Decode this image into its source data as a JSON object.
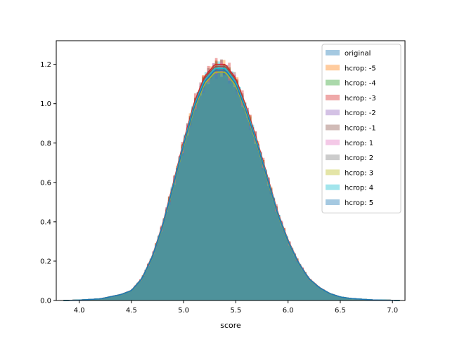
{
  "chart_data": {
    "type": "area",
    "title": "",
    "xlabel": "score",
    "ylabel": "",
    "xlim": [
      3.78,
      7.12
    ],
    "ylim": [
      0,
      1.32
    ],
    "xticks": [
      4.0,
      4.5,
      5.0,
      5.5,
      6.0,
      6.5,
      7.0
    ],
    "xtick_labels": [
      "4.0",
      "4.5",
      "5.0",
      "5.5",
      "6.0",
      "6.5",
      "7.0"
    ],
    "yticks": [
      0.0,
      0.2,
      0.4,
      0.6,
      0.8,
      1.0,
      1.2
    ],
    "ytick_labels": [
      "0.0",
      "0.2",
      "0.4",
      "0.6",
      "0.8",
      "1.0",
      "1.2"
    ],
    "grid": false,
    "legend_position": "top-right",
    "distribution_shape": {
      "x": [
        3.85,
        4.0,
        4.2,
        4.4,
        4.5,
        4.6,
        4.7,
        4.8,
        4.9,
        5.0,
        5.1,
        5.2,
        5.3,
        5.4,
        5.5,
        5.6,
        5.7,
        5.8,
        5.9,
        6.0,
        6.1,
        6.2,
        6.3,
        6.4,
        6.5,
        6.6,
        6.8,
        7.08
      ],
      "density": [
        0.0,
        0.002,
        0.008,
        0.03,
        0.05,
        0.11,
        0.22,
        0.38,
        0.58,
        0.79,
        0.98,
        1.11,
        1.17,
        1.17,
        1.1,
        0.96,
        0.8,
        0.62,
        0.44,
        0.3,
        0.19,
        0.11,
        0.065,
        0.035,
        0.018,
        0.01,
        0.003,
        0.0
      ]
    },
    "series": [
      {
        "name": "original",
        "color": "#1f77b4",
        "peak": 1.16
      },
      {
        "name": "hcrop: -5",
        "color": "#ff7f0e",
        "peak": 1.19
      },
      {
        "name": "hcrop: -4",
        "color": "#2ca02c",
        "peak": 1.18
      },
      {
        "name": "hcrop: -3",
        "color": "#d62728",
        "peak": 1.2
      },
      {
        "name": "hcrop: -2",
        "color": "#9467bd",
        "peak": 1.17
      },
      {
        "name": "hcrop: -1",
        "color": "#8c564b",
        "peak": 1.19
      },
      {
        "name": "hcrop: 1",
        "color": "#e377c2",
        "peak": 1.18
      },
      {
        "name": "hcrop: 2",
        "color": "#7f7f7f",
        "peak": 1.17
      },
      {
        "name": "hcrop: 3",
        "color": "#bcbd22",
        "peak": 1.16
      },
      {
        "name": "hcrop: 4",
        "color": "#17becf",
        "peak": 1.18
      },
      {
        "name": "hcrop: 5",
        "color": "#1f77b4",
        "peak": 1.17
      }
    ]
  }
}
